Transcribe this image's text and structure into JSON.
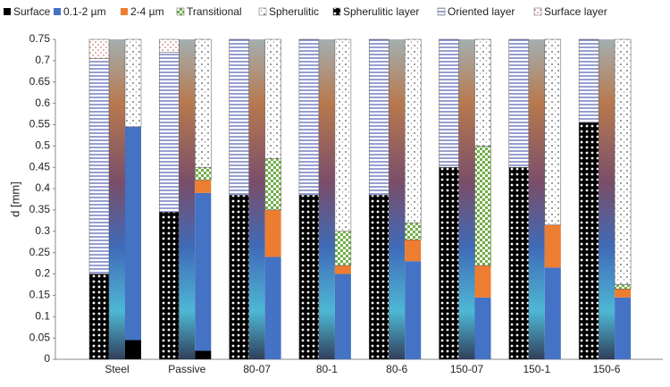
{
  "chart_data": {
    "type": "stacked_bar",
    "y_label": "d [mm]",
    "categories": [
      "Steel",
      "Passive",
      "80-07",
      "80-1",
      "80-6",
      "150-07",
      "150-1",
      "150-6"
    ],
    "ylim": [
      0,
      0.75
    ],
    "yticks": [
      0,
      0.05,
      0.1,
      0.15,
      0.2,
      0.25,
      0.3,
      0.35,
      0.4,
      0.45,
      0.5,
      0.55,
      0.6,
      0.65,
      0.7,
      0.75
    ],
    "series": [
      {
        "name": "Surface",
        "stack": "right",
        "color": "#000000",
        "values": [
          0.045,
          0.02,
          0,
          0,
          0,
          0,
          0,
          0
        ]
      },
      {
        "name": "0.1-2 µm",
        "stack": "right",
        "color": "#4472c4",
        "values": [
          0.5,
          0.37,
          0.24,
          0.2,
          0.23,
          0.145,
          0.215,
          0.145
        ]
      },
      {
        "name": "2-4 µm",
        "stack": "right",
        "color": "#ed7d31",
        "values": [
          0,
          0.03,
          0.11,
          0.02,
          0.05,
          0.075,
          0.1,
          0.02
        ]
      },
      {
        "name": "Transitional",
        "stack": "right",
        "color": "#70ad47",
        "pattern": "check",
        "values": [
          0,
          0.03,
          0.12,
          0.08,
          0.04,
          0.28,
          0,
          0.01
        ]
      },
      {
        "name": "Spherulitic",
        "stack": "right",
        "color": "#7f7f7f",
        "pattern": "sparse",
        "values": [
          0.205,
          0.3,
          0.28,
          0.45,
          0.43,
          0.25,
          0.435,
          0.575
        ]
      },
      {
        "name": "Spherulitic layer",
        "stack": "left",
        "color": "#000000",
        "pattern": "dense",
        "values": [
          0.2,
          0.345,
          0.385,
          0.385,
          0.385,
          0.45,
          0.45,
          0.555
        ]
      },
      {
        "name": "Oriented layer",
        "stack": "left",
        "color": "#2f3fa0",
        "pattern": "hlines",
        "values": [
          0.505,
          0.375,
          0.365,
          0.365,
          0.365,
          0.3,
          0.3,
          0.195
        ]
      },
      {
        "name": "Surface layer",
        "stack": "left",
        "color": "#c0504d",
        "pattern": "dots",
        "values": [
          0.045,
          0.03,
          0,
          0,
          0,
          0,
          0,
          0
        ]
      }
    ]
  }
}
